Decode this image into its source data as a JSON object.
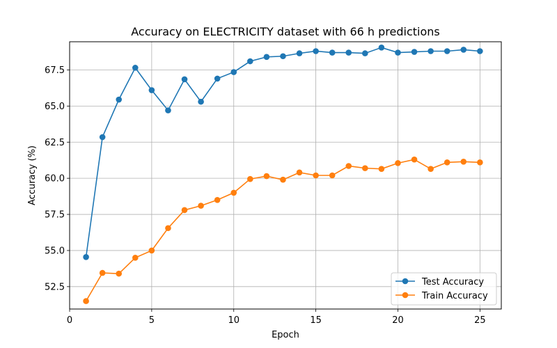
{
  "chart_data": {
    "type": "line",
    "title": "Accuracy on ELECTRICITY dataset with 66 h predictions",
    "xlabel": "Epoch",
    "ylabel": "Accuracy (%)",
    "xlim": [
      0,
      26.3
    ],
    "ylim": [
      50.95,
      69.45
    ],
    "xticks": [
      0,
      5,
      10,
      15,
      20,
      25
    ],
    "yticks": [
      52.5,
      55.0,
      57.5,
      60.0,
      62.5,
      65.0,
      67.5
    ],
    "grid": true,
    "legend_position": "lower-right",
    "x": [
      1,
      2,
      3,
      4,
      5,
      6,
      7,
      8,
      9,
      10,
      11,
      12,
      13,
      14,
      15,
      16,
      17,
      18,
      19,
      20,
      21,
      22,
      23,
      24,
      25
    ],
    "series": [
      {
        "name": "Test Accuracy",
        "color": "#1f77b4",
        "values": [
          54.55,
          62.85,
          65.45,
          67.65,
          66.1,
          64.7,
          66.85,
          65.3,
          66.9,
          67.35,
          68.1,
          68.4,
          68.45,
          68.65,
          68.8,
          68.7,
          68.7,
          68.65,
          69.05,
          68.7,
          68.75,
          68.8,
          68.8,
          68.9,
          68.8
        ]
      },
      {
        "name": "Train Accuracy",
        "color": "#ff7f0e",
        "values": [
          51.5,
          53.45,
          53.4,
          54.5,
          55.0,
          56.55,
          57.8,
          58.1,
          58.5,
          59.0,
          59.95,
          60.15,
          59.9,
          60.4,
          60.2,
          60.2,
          60.85,
          60.7,
          60.65,
          61.05,
          61.3,
          60.65,
          61.1,
          61.15,
          61.1
        ]
      }
    ]
  }
}
